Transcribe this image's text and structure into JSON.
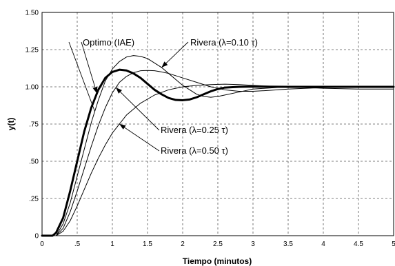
{
  "chart_data": {
    "type": "line",
    "xlabel": "Tiempo (minutos)",
    "ylabel": "y(t)",
    "xlim": [
      0,
      5
    ],
    "ylim": [
      0,
      1.5
    ],
    "x_ticks": [
      {
        "value": 0,
        "label": "0"
      },
      {
        "value": 0.5,
        "label": ".5"
      },
      {
        "value": 1,
        "label": "1"
      },
      {
        "value": 1.5,
        "label": "1.5"
      },
      {
        "value": 2,
        "label": "2"
      },
      {
        "value": 2.5,
        "label": "2.5"
      },
      {
        "value": 3,
        "label": "3"
      },
      {
        "value": 3.5,
        "label": "3.5"
      },
      {
        "value": 4,
        "label": "4"
      },
      {
        "value": 4.5,
        "label": "4.5"
      },
      {
        "value": 5,
        "label": "5"
      }
    ],
    "y_ticks": [
      {
        "value": 0,
        "label": "0"
      },
      {
        "value": 0.25,
        "label": ".25"
      },
      {
        "value": 0.5,
        "label": ".50"
      },
      {
        "value": 0.75,
        "label": ".75"
      },
      {
        "value": 1,
        "label": "1.00"
      },
      {
        "value": 1.25,
        "label": "1.25"
      },
      {
        "value": 1.5,
        "label": "1.50"
      }
    ],
    "grid": true,
    "series": [
      {
        "name": "Optimo (IAE)",
        "bold": true,
        "x": [
          0,
          0.15,
          0.2,
          0.3,
          0.4,
          0.5,
          0.6,
          0.7,
          0.8,
          0.9,
          1.0,
          1.1,
          1.2,
          1.3,
          1.4,
          1.5,
          1.6,
          1.7,
          1.8,
          1.9,
          2.0,
          2.1,
          2.2,
          2.3,
          2.4,
          2.5,
          2.6,
          2.8,
          3.0,
          3.5,
          4.0,
          4.5,
          5.0
        ],
        "y": [
          0,
          0,
          0.02,
          0.12,
          0.3,
          0.5,
          0.7,
          0.86,
          0.98,
          1.06,
          1.1,
          1.115,
          1.11,
          1.09,
          1.06,
          1.02,
          0.98,
          0.95,
          0.925,
          0.912,
          0.91,
          0.915,
          0.93,
          0.95,
          0.97,
          0.985,
          0.995,
          1.0,
          1.002,
          1.0,
          1.0,
          1.0,
          1.0
        ]
      },
      {
        "name": "Rivera (λ=0.10 τ)",
        "bold": false,
        "x": [
          0,
          0.2,
          0.3,
          0.4,
          0.5,
          0.6,
          0.7,
          0.8,
          0.9,
          1.0,
          1.1,
          1.2,
          1.3,
          1.4,
          1.5,
          1.6,
          1.7,
          1.8,
          1.9,
          2.0,
          2.1,
          2.2,
          2.3,
          2.4,
          2.5,
          2.6,
          2.8,
          3.0,
          3.5,
          4.0,
          4.5,
          5.0
        ],
        "y": [
          0,
          0,
          0.08,
          0.22,
          0.4,
          0.58,
          0.76,
          0.91,
          1.04,
          1.12,
          1.17,
          1.2,
          1.21,
          1.205,
          1.19,
          1.16,
          1.13,
          1.09,
          1.05,
          1.01,
          0.98,
          0.95,
          0.935,
          0.93,
          0.935,
          0.945,
          0.965,
          0.985,
          1.0,
          1.0,
          1.0,
          1.0
        ]
      },
      {
        "name": "Rivera (λ=0.25 τ)",
        "bold": false,
        "x": [
          0,
          0.2,
          0.3,
          0.4,
          0.5,
          0.6,
          0.7,
          0.8,
          0.9,
          1.0,
          1.1,
          1.2,
          1.3,
          1.4,
          1.5,
          1.6,
          1.7,
          1.8,
          1.9,
          2.0,
          2.2,
          2.4,
          2.6,
          2.8,
          3.0,
          3.2,
          3.5,
          4.0,
          4.5,
          5.0
        ],
        "y": [
          0,
          0,
          0.05,
          0.16,
          0.3,
          0.45,
          0.6,
          0.74,
          0.86,
          0.96,
          1.03,
          1.07,
          1.095,
          1.108,
          1.11,
          1.108,
          1.1,
          1.09,
          1.075,
          1.06,
          1.03,
          1.0,
          0.98,
          0.97,
          0.97,
          0.975,
          0.985,
          0.995,
          1.0,
          1.0
        ]
      },
      {
        "name": "Rivera (λ=0.50 τ)",
        "bold": false,
        "x": [
          0,
          0.2,
          0.3,
          0.4,
          0.5,
          0.6,
          0.7,
          0.8,
          0.9,
          1.0,
          1.2,
          1.4,
          1.6,
          1.8,
          2.0,
          2.2,
          2.4,
          2.6,
          2.8,
          3.0,
          3.2,
          3.5,
          4.0,
          4.5,
          5.0
        ],
        "y": [
          0,
          0,
          0.03,
          0.1,
          0.2,
          0.31,
          0.42,
          0.52,
          0.61,
          0.69,
          0.81,
          0.89,
          0.945,
          0.98,
          1.0,
          1.01,
          1.015,
          1.018,
          1.015,
          1.01,
          1.005,
          1.0,
          0.99,
          0.985,
          0.985
        ]
      }
    ],
    "annotations": [
      {
        "text": "Optimo (IAE)",
        "series": 0,
        "anchor_x": 0.78
      },
      {
        "text": "Rivera (λ=0.10 τ)",
        "series": 1,
        "anchor_x": 1.7
      },
      {
        "text": "Rivera (λ=0.25 τ)",
        "series": 2,
        "anchor_x": 1.05
      },
      {
        "text": "Rivera (λ=0.50 τ)",
        "series": 3,
        "anchor_x": 1.1
      }
    ]
  }
}
